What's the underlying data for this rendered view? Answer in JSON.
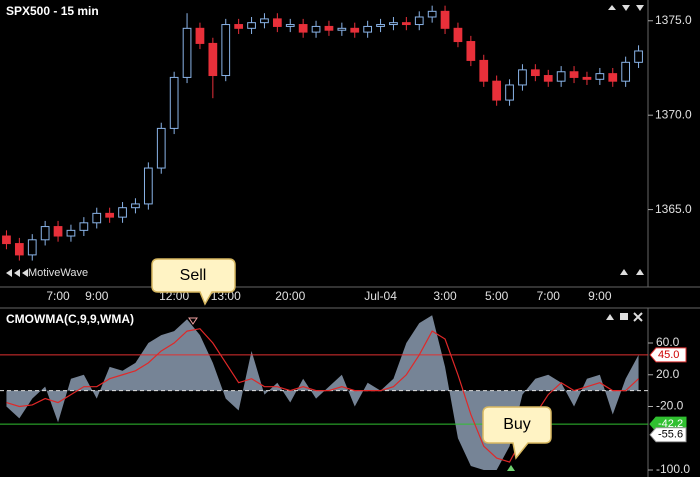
{
  "chart_data": [
    {
      "type": "candlestick",
      "title": "SPX500 - 15 min",
      "watermark": "MotiveWave",
      "annotation": "Sell",
      "up_color": "#8ab4e8",
      "down_color": "#e8303a",
      "categories": [
        null,
        null,
        null,
        null,
        "7:00",
        null,
        null,
        "9:00",
        null,
        null,
        null,
        null,
        null,
        "12:00",
        null,
        null,
        null,
        "13:00",
        null,
        null,
        null,
        null,
        "20:00",
        null,
        null,
        null,
        null,
        null,
        null,
        "Jul-04",
        null,
        null,
        null,
        null,
        "3:00",
        null,
        null,
        null,
        "5:00",
        null,
        null,
        null,
        "7:00",
        null,
        null,
        null,
        "9:00",
        null,
        null,
        null
      ],
      "open": [
        1363.6,
        1363.2,
        1362.6,
        1363.4,
        1364.1,
        1363.6,
        1363.9,
        1364.3,
        1364.8,
        1364.6,
        1365.1,
        1365.3,
        1367.2,
        1369.3,
        1372.0,
        1374.6,
        1373.8,
        1372.1,
        1374.8,
        1374.6,
        1374.9,
        1375.1,
        1374.7,
        1374.8,
        1374.4,
        1374.7,
        1374.5,
        1374.6,
        1374.4,
        1374.7,
        1374.8,
        1374.9,
        1374.8,
        1375.2,
        1375.5,
        1374.6,
        1373.9,
        1372.9,
        1371.8,
        1370.8,
        1371.6,
        1372.4,
        1372.1,
        1371.8,
        1372.3,
        1372.0,
        1371.9,
        1372.2,
        1371.8,
        1372.8
      ],
      "high": [
        1363.9,
        1363.5,
        1363.7,
        1364.4,
        1364.4,
        1364.2,
        1364.6,
        1365.1,
        1365.1,
        1365.4,
        1365.6,
        1367.5,
        1369.6,
        1372.3,
        1375.4,
        1374.9,
        1374.1,
        1375.1,
        1375.1,
        1375.2,
        1375.4,
        1375.4,
        1375.1,
        1375.1,
        1375.0,
        1375.0,
        1374.9,
        1374.9,
        1375.0,
        1375.1,
        1375.2,
        1375.2,
        1375.5,
        1375.8,
        1375.8,
        1374.9,
        1374.2,
        1373.2,
        1372.1,
        1371.9,
        1372.7,
        1372.7,
        1372.4,
        1372.6,
        1372.6,
        1372.3,
        1372.5,
        1372.5,
        1373.1,
        1373.7
      ],
      "low": [
        1362.9,
        1362.3,
        1362.3,
        1363.1,
        1363.3,
        1363.3,
        1363.6,
        1364.0,
        1364.3,
        1364.3,
        1364.8,
        1365.0,
        1366.9,
        1369.0,
        1371.7,
        1373.5,
        1370.9,
        1371.8,
        1374.3,
        1374.3,
        1374.6,
        1374.4,
        1374.4,
        1374.1,
        1374.1,
        1374.2,
        1374.2,
        1374.1,
        1374.1,
        1374.4,
        1374.5,
        1374.5,
        1374.5,
        1374.9,
        1374.3,
        1373.6,
        1372.6,
        1371.5,
        1370.5,
        1370.5,
        1371.3,
        1371.8,
        1371.5,
        1371.5,
        1371.7,
        1371.6,
        1371.6,
        1371.5,
        1371.5,
        1372.5
      ],
      "close": [
        1363.2,
        1362.6,
        1363.4,
        1364.1,
        1363.6,
        1363.9,
        1364.3,
        1364.8,
        1364.6,
        1365.1,
        1365.3,
        1367.2,
        1369.3,
        1372.0,
        1374.6,
        1373.8,
        1372.1,
        1374.8,
        1374.6,
        1374.9,
        1375.1,
        1374.7,
        1374.8,
        1374.4,
        1374.7,
        1374.5,
        1374.6,
        1374.4,
        1374.7,
        1374.8,
        1374.9,
        1374.8,
        1375.2,
        1375.5,
        1374.6,
        1373.9,
        1372.9,
        1371.8,
        1370.8,
        1371.6,
        1372.4,
        1372.1,
        1371.8,
        1372.3,
        1372.0,
        1371.9,
        1372.2,
        1371.8,
        1372.8,
        1373.4
      ],
      "ylim": [
        1360.9,
        1376.1
      ],
      "yticks": [
        {
          "value": 1375,
          "label": "1375.0"
        },
        {
          "value": 1370,
          "label": "1370.0"
        },
        {
          "value": 1365,
          "label": "1365.0"
        }
      ]
    },
    {
      "type": "area",
      "title": "CMOWMA(C,9,9,WMA)",
      "annotation": "Buy",
      "color": "#8b9bb0",
      "signal_color": "#e02828",
      "values": [
        -20,
        -35,
        -10,
        5,
        -40,
        15,
        20,
        -10,
        30,
        25,
        35,
        60,
        70,
        75,
        90,
        70,
        35,
        -10,
        -25,
        50,
        -5,
        10,
        -15,
        15,
        -10,
        5,
        20,
        -20,
        10,
        0,
        15,
        60,
        85,
        95,
        30,
        -60,
        -95,
        -100,
        -100,
        -70,
        -5,
        15,
        20,
        10,
        -20,
        15,
        20,
        -30,
        15,
        45
      ],
      "signal": [
        -15,
        -20,
        -18,
        -10,
        -15,
        -5,
        5,
        5,
        15,
        20,
        25,
        35,
        50,
        60,
        75,
        78,
        60,
        35,
        10,
        15,
        5,
        5,
        0,
        5,
        0,
        0,
        5,
        0,
        0,
        0,
        5,
        20,
        45,
        75,
        65,
        20,
        -30,
        -70,
        -85,
        -90,
        -60,
        -30,
        -5,
        10,
        0,
        5,
        10,
        0,
        0,
        15
      ],
      "ylim": [
        -108.8,
        104.1
      ],
      "yticks": [
        {
          "value": 60,
          "label": "60.0"
        },
        {
          "value": 20,
          "label": "20.0"
        },
        {
          "value": -20,
          "label": "-20.0"
        },
        {
          "value": -100,
          "label": "-100.0"
        }
      ],
      "reference_lines": [
        {
          "value": 45,
          "label": "45.0",
          "color": "#e03030"
        },
        {
          "value": 0,
          "label": null,
          "color": "#dddddd"
        },
        {
          "value": -42.2,
          "label": "-42.2",
          "color": "#30c030"
        }
      ],
      "badges": [
        {
          "value": -55.6,
          "label": "-55.6"
        }
      ]
    }
  ]
}
